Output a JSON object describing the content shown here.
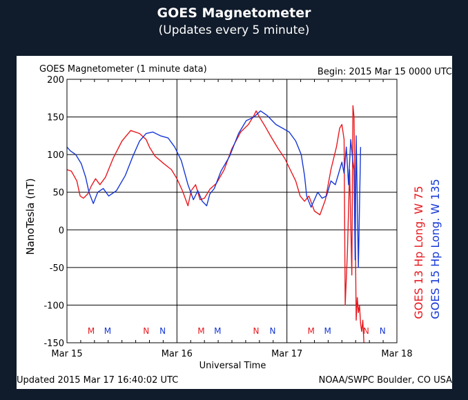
{
  "page": {
    "title": "GOES Magnetometer",
    "subtitle": "(Updates every 5 minute)"
  },
  "chart_data": {
    "type": "line",
    "title": "GOES Magnetometer (1 minute data)",
    "begin": "Begin:  2015 Mar 15 0000 UTC",
    "xlabel": "Universal Time",
    "ylabel": "NanoTesla (nT)",
    "ylim": [
      -150,
      200
    ],
    "yticks": [
      -150,
      -100,
      -50,
      0,
      50,
      100,
      150,
      200
    ],
    "xlim_days": [
      0,
      3
    ],
    "x_unit": "days since Mar 15 00:00 UTC",
    "xtick_labels": [
      "Mar 15",
      "Mar 16",
      "Mar 17",
      "Mar 18"
    ],
    "grid": true,
    "updated": "Updated 2015 Mar 17 16:40:02 UTC",
    "credit": "NOAA/SWPC Boulder, CO USA",
    "markers": [
      {
        "label": "M",
        "x": 0.22,
        "color": "#e8181e"
      },
      {
        "label": "M",
        "x": 0.37,
        "color": "#1436d6"
      },
      {
        "label": "N",
        "x": 0.72,
        "color": "#e8181e"
      },
      {
        "label": "N",
        "x": 0.87,
        "color": "#1436d6"
      },
      {
        "label": "M",
        "x": 1.22,
        "color": "#e8181e"
      },
      {
        "label": "M",
        "x": 1.37,
        "color": "#1436d6"
      },
      {
        "label": "N",
        "x": 1.72,
        "color": "#e8181e"
      },
      {
        "label": "N",
        "x": 1.87,
        "color": "#1436d6"
      },
      {
        "label": "M",
        "x": 2.22,
        "color": "#e8181e"
      },
      {
        "label": "M",
        "x": 2.37,
        "color": "#1436d6"
      },
      {
        "label": "N",
        "x": 2.72,
        "color": "#e8181e"
      },
      {
        "label": "N",
        "x": 2.87,
        "color": "#1436d6"
      }
    ],
    "series": [
      {
        "name": "GOES 13 Hp   Long. W 75",
        "color": "#e8181e",
        "x": [
          0,
          0.04,
          0.09,
          0.12,
          0.15,
          0.19,
          0.22,
          0.26,
          0.3,
          0.35,
          0.42,
          0.5,
          0.58,
          0.66,
          0.72,
          0.75,
          0.8,
          0.88,
          0.95,
          1.0,
          1.05,
          1.1,
          1.13,
          1.17,
          1.21,
          1.25,
          1.3,
          1.36,
          1.43,
          1.5,
          1.58,
          1.65,
          1.7,
          1.72,
          1.75,
          1.8,
          1.85,
          1.92,
          1.98,
          2.03,
          2.08,
          2.12,
          2.16,
          2.2,
          2.25,
          2.3,
          2.35,
          2.4,
          2.45,
          2.48,
          2.5,
          2.52,
          2.53,
          2.55,
          2.57,
          2.59,
          2.6,
          2.61,
          2.62,
          2.63,
          2.64,
          2.65,
          2.66,
          2.67,
          2.68,
          2.69,
          2.7
        ],
        "y": [
          80,
          78,
          65,
          45,
          42,
          48,
          58,
          68,
          60,
          70,
          95,
          118,
          132,
          128,
          120,
          110,
          98,
          88,
          80,
          68,
          52,
          32,
          52,
          60,
          40,
          42,
          54,
          62,
          80,
          108,
          130,
          140,
          152,
          158,
          150,
          138,
          125,
          108,
          95,
          80,
          65,
          45,
          38,
          45,
          25,
          20,
          40,
          80,
          110,
          135,
          140,
          120,
          -100,
          -30,
          80,
          -60,
          165,
          150,
          20,
          -120,
          -90,
          -110,
          -100,
          -125,
          -135,
          -120,
          -150
        ]
      },
      {
        "name": "GOES 15 Hp   Long. W 135",
        "color": "#1436d6",
        "x": [
          0,
          0.03,
          0.08,
          0.13,
          0.17,
          0.2,
          0.24,
          0.28,
          0.33,
          0.38,
          0.45,
          0.53,
          0.6,
          0.66,
          0.72,
          0.78,
          0.85,
          0.92,
          0.98,
          1.04,
          1.1,
          1.15,
          1.19,
          1.23,
          1.27,
          1.3,
          1.34,
          1.4,
          1.48,
          1.56,
          1.63,
          1.7,
          1.76,
          1.82,
          1.9,
          1.96,
          2.02,
          2.08,
          2.13,
          2.16,
          2.18,
          2.22,
          2.28,
          2.32,
          2.36,
          2.4,
          2.44,
          2.47,
          2.5,
          2.52,
          2.54,
          2.56,
          2.58,
          2.6,
          2.61,
          2.62,
          2.63,
          2.64,
          2.65,
          2.66,
          2.67
        ],
        "y": [
          110,
          105,
          100,
          88,
          70,
          50,
          35,
          50,
          55,
          45,
          52,
          72,
          98,
          118,
          128,
          130,
          125,
          122,
          110,
          92,
          60,
          40,
          52,
          38,
          32,
          48,
          55,
          78,
          98,
          128,
          145,
          150,
          158,
          152,
          140,
          135,
          130,
          118,
          100,
          72,
          45,
          30,
          50,
          42,
          45,
          65,
          60,
          75,
          90,
          75,
          110,
          60,
          120,
          90,
          80,
          -40,
          125,
          40,
          -50,
          30,
          110
        ]
      }
    ]
  }
}
